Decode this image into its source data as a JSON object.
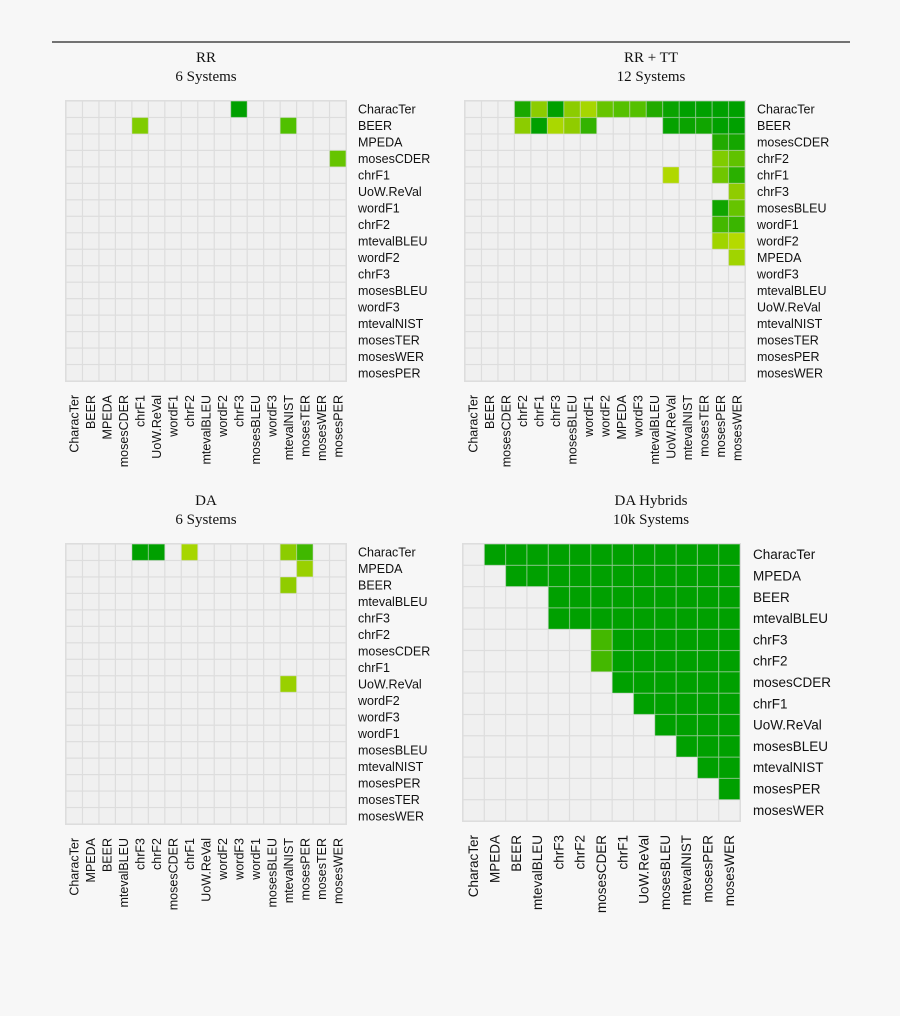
{
  "chart_data": [
    {
      "type": "heatmap",
      "title": "RR",
      "subtitle": "6 Systems",
      "row_labels": [
        "CharacTer",
        "BEER",
        "MPEDA",
        "mosesCDER",
        "chrF1",
        "UoW.ReVal",
        "wordF1",
        "chrF2",
        "mtevalBLEU",
        "wordF2",
        "chrF3",
        "mosesBLEU",
        "wordF3",
        "mtevalNIST",
        "mosesTER",
        "mosesWER",
        "mosesPER"
      ],
      "col_labels": [
        "CharacTer",
        "BEER",
        "MPEDA",
        "mosesCDER",
        "chrF1",
        "UoW.ReVal",
        "wordF1",
        "chrF2",
        "mtevalBLEU",
        "wordF2",
        "chrF3",
        "mosesBLEU",
        "wordF3",
        "mtevalNIST",
        "mosesTER",
        "mosesWER",
        "mosesPER"
      ],
      "cells": [
        [
          0,
          10,
          "#00a000"
        ],
        [
          1,
          4,
          "#80cc00"
        ],
        [
          1,
          13,
          "#50c000"
        ],
        [
          3,
          16,
          "#66c400"
        ]
      ]
    },
    {
      "type": "heatmap",
      "title": "RR + TT",
      "subtitle": "12 Systems",
      "row_labels": [
        "CharacTer",
        "BEER",
        "mosesCDER",
        "chrF2",
        "chrF1",
        "chrF3",
        "mosesBLEU",
        "wordF1",
        "wordF2",
        "MPEDA",
        "wordF3",
        "mtevalBLEU",
        "UoW.ReVal",
        "mtevalNIST",
        "mosesTER",
        "mosesPER",
        "mosesWER"
      ],
      "col_labels": [
        "CharacTer",
        "BEER",
        "mosesCDER",
        "chrF2",
        "chrF1",
        "chrF3",
        "mosesBLEU",
        "wordF1",
        "wordF2",
        "MPEDA",
        "wordF3",
        "mtevalBLEU",
        "UoW.ReVal",
        "mtevalNIST",
        "mosesTER",
        "mosesPER",
        "mosesWER"
      ],
      "cells": [
        [
          0,
          3,
          "#1aa800"
        ],
        [
          0,
          4,
          "#8ccc00"
        ],
        [
          0,
          5,
          "#00a000"
        ],
        [
          0,
          6,
          "#8ccc00"
        ],
        [
          0,
          7,
          "#a6d600"
        ],
        [
          0,
          8,
          "#66c400"
        ],
        [
          0,
          9,
          "#55c000"
        ],
        [
          0,
          10,
          "#55c000"
        ],
        [
          0,
          11,
          "#22aa00"
        ],
        [
          0,
          12,
          "#0aa300"
        ],
        [
          0,
          13,
          "#00a000"
        ],
        [
          0,
          14,
          "#00a000"
        ],
        [
          0,
          15,
          "#00a000"
        ],
        [
          0,
          16,
          "#00a000"
        ],
        [
          1,
          3,
          "#8ccc00"
        ],
        [
          1,
          4,
          "#00a000"
        ],
        [
          1,
          5,
          "#aad800"
        ],
        [
          1,
          6,
          "#90cc00"
        ],
        [
          1,
          7,
          "#33b300"
        ],
        [
          1,
          12,
          "#05a200"
        ],
        [
          1,
          13,
          "#0aa300"
        ],
        [
          1,
          14,
          "#10a500"
        ],
        [
          1,
          15,
          "#00a000"
        ],
        [
          1,
          16,
          "#00a000"
        ],
        [
          2,
          15,
          "#22aa00"
        ],
        [
          2,
          16,
          "#15a700"
        ],
        [
          3,
          15,
          "#80cc00"
        ],
        [
          3,
          16,
          "#60c200"
        ],
        [
          4,
          12,
          "#b0d800"
        ],
        [
          4,
          15,
          "#70c600"
        ],
        [
          4,
          16,
          "#2ab000"
        ],
        [
          5,
          16,
          "#90cc00"
        ],
        [
          6,
          15,
          "#10a500"
        ],
        [
          6,
          16,
          "#66c400"
        ],
        [
          7,
          15,
          "#44b800"
        ],
        [
          7,
          16,
          "#3ab500"
        ],
        [
          8,
          15,
          "#a0d400"
        ],
        [
          8,
          16,
          "#b5da00"
        ],
        [
          9,
          16,
          "#a0d400"
        ]
      ]
    },
    {
      "type": "heatmap",
      "title": "DA",
      "subtitle": "6 Systems",
      "row_labels": [
        "CharacTer",
        "MPEDA",
        "BEER",
        "mtevalBLEU",
        "chrF3",
        "chrF2",
        "mosesCDER",
        "chrF1",
        "UoW.ReVal",
        "wordF2",
        "wordF3",
        "wordF1",
        "mosesBLEU",
        "mtevalNIST",
        "mosesPER",
        "mosesTER",
        "mosesWER"
      ],
      "col_labels": [
        "CharacTer",
        "MPEDA",
        "BEER",
        "mtevalBLEU",
        "chrF3",
        "chrF2",
        "mosesCDER",
        "chrF1",
        "UoW.ReVal",
        "wordF2",
        "wordF3",
        "wordF1",
        "mosesBLEU",
        "mtevalNIST",
        "mosesPER",
        "mosesTER",
        "mosesWER"
      ],
      "cells": [
        [
          0,
          4,
          "#00a000"
        ],
        [
          0,
          5,
          "#00a000"
        ],
        [
          0,
          7,
          "#a6d600"
        ],
        [
          0,
          13,
          "#8ccc00"
        ],
        [
          0,
          14,
          "#40b800"
        ],
        [
          1,
          14,
          "#99d000"
        ],
        [
          2,
          13,
          "#90cc00"
        ],
        [
          8,
          13,
          "#99d000"
        ]
      ]
    },
    {
      "type": "heatmap",
      "title": "DA Hybrids",
      "subtitle": "10k Systems",
      "row_labels": [
        "CharacTer",
        "MPEDA",
        "BEER",
        "mtevalBLEU",
        "chrF3",
        "chrF2",
        "mosesCDER",
        "chrF1",
        "UoW.ReVal",
        "mosesBLEU",
        "mtevalNIST",
        "mosesPER",
        "mosesWER"
      ],
      "col_labels": [
        "CharacTer",
        "MPEDA",
        "BEER",
        "mtevalBLEU",
        "chrF3",
        "chrF2",
        "mosesCDER",
        "chrF1",
        "UoW.ReVal",
        "mosesBLEU",
        "mtevalNIST",
        "mosesPER",
        "mosesWER"
      ],
      "cells_rule": "row ranges",
      "cell_ranges": [
        [
          0,
          1,
          12
        ],
        [
          1,
          2,
          12
        ],
        [
          2,
          4,
          12
        ],
        [
          3,
          4,
          12
        ],
        [
          4,
          6,
          12
        ],
        [
          5,
          6,
          12
        ],
        [
          6,
          7,
          12
        ],
        [
          7,
          8,
          12
        ],
        [
          8,
          9,
          12
        ],
        [
          9,
          10,
          12
        ],
        [
          10,
          11,
          12
        ],
        [
          11,
          12,
          12
        ]
      ],
      "highlight_color": "#00a000",
      "exceptions": [
        [
          4,
          6,
          "#44b800"
        ],
        [
          5,
          6,
          "#44b800"
        ]
      ]
    }
  ],
  "colors": {
    "background": "#f7f7f7",
    "empty_cell": "#f0f0f0",
    "grid": "#dddddd",
    "significant": "#00a000",
    "weak": "#b5da00"
  }
}
